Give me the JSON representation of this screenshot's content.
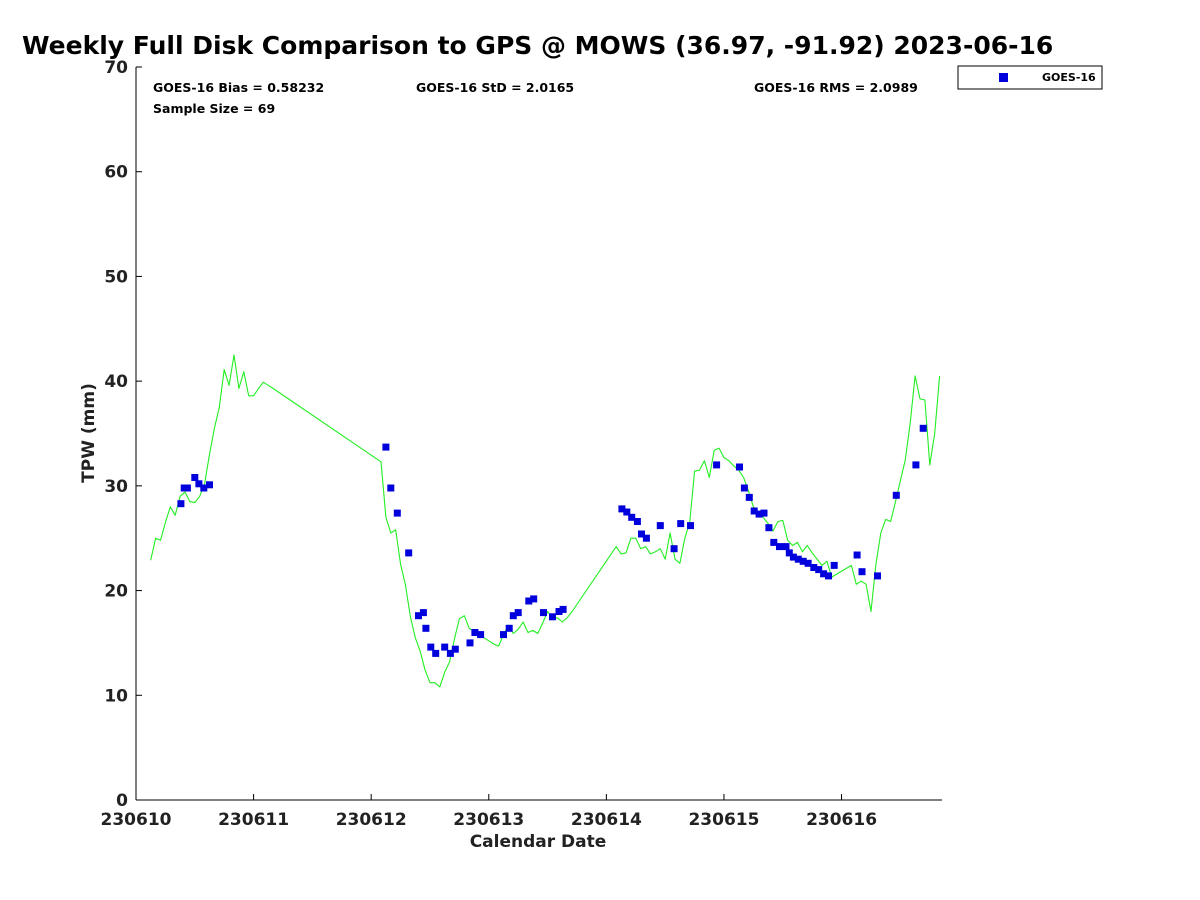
{
  "chart_data": {
    "type": "scatter",
    "title": "Weekly Full Disk Comparison to GPS @ MOWS (36.97, -91.92) 2023-06-16",
    "xlabel": "Calendar Date",
    "ylabel": "TPW (mm)",
    "xlim": [
      "2023-06-10 00:00",
      "2023-06-16 20:30"
    ],
    "ylim": [
      0,
      70
    ],
    "x_ticks": [
      "230610",
      "230611",
      "230612",
      "230613",
      "230614",
      "230615",
      "230616"
    ],
    "y_ticks": [
      "0",
      "10",
      "20",
      "30",
      "40",
      "50",
      "60",
      "70"
    ],
    "grid": false,
    "legend_position": "top-right",
    "stats": {
      "bias": "GOES-16 Bias = 0.58232",
      "std": "GOES-16 StD = 2.0165",
      "rms": "GOES-16 RMS = 2.0989",
      "sample": "Sample Size = 69"
    },
    "series": [
      {
        "name": "GOES-16",
        "kind": "scatter",
        "color": "#0000dd",
        "marker": "square",
        "x": [
          "2023-06-10 09:10",
          "2023-06-10 09:50",
          "2023-06-10 10:30",
          "2023-06-10 12:00",
          "2023-06-10 12:50",
          "2023-06-10 13:50",
          "2023-06-10 15:00",
          "2023-06-12 03:00",
          "2023-06-12 04:00",
          "2023-06-12 05:20",
          "2023-06-12 07:40",
          "2023-06-12 09:40",
          "2023-06-12 10:40",
          "2023-06-12 11:10",
          "2023-06-12 12:10",
          "2023-06-12 13:10",
          "2023-06-12 15:00",
          "2023-06-12 16:10",
          "2023-06-12 17:10",
          "2023-06-12 20:10",
          "2023-06-12 21:10",
          "2023-06-12 22:20",
          "2023-06-13 03:00",
          "2023-06-13 04:10",
          "2023-06-13 05:00",
          "2023-06-13 06:00",
          "2023-06-13 08:10",
          "2023-06-13 09:10",
          "2023-06-13 11:10",
          "2023-06-13 13:00",
          "2023-06-13 14:20",
          "2023-06-13 15:10",
          "2023-06-14 03:10",
          "2023-06-14 04:10",
          "2023-06-14 05:10",
          "2023-06-14 06:20",
          "2023-06-14 07:10",
          "2023-06-14 08:10",
          "2023-06-14 11:00",
          "2023-06-14 13:50",
          "2023-06-14 15:10",
          "2023-06-14 17:10",
          "2023-06-14 22:30",
          "2023-06-15 03:10",
          "2023-06-15 04:10",
          "2023-06-15 05:10",
          "2023-06-15 06:10",
          "2023-06-15 07:10",
          "2023-06-15 08:10",
          "2023-06-15 09:10",
          "2023-06-15 10:10",
          "2023-06-15 11:20",
          "2023-06-15 12:40",
          "2023-06-15 13:20",
          "2023-06-15 14:10",
          "2023-06-15 15:10",
          "2023-06-15 16:10",
          "2023-06-15 17:10",
          "2023-06-15 18:20",
          "2023-06-15 19:20",
          "2023-06-15 20:20",
          "2023-06-15 21:20",
          "2023-06-15 22:30",
          "2023-06-16 03:10",
          "2023-06-16 04:10",
          "2023-06-16 07:20",
          "2023-06-16 11:10",
          "2023-06-16 15:10",
          "2023-06-16 16:40"
        ],
        "y": [
          28.3,
          29.8,
          29.8,
          30.8,
          30.2,
          29.8,
          30.1,
          33.7,
          29.8,
          27.4,
          23.6,
          17.6,
          17.9,
          16.4,
          14.6,
          14.0,
          14.6,
          14.0,
          14.4,
          15.0,
          16.0,
          15.8,
          15.8,
          16.4,
          17.6,
          17.9,
          19.0,
          19.2,
          17.9,
          17.5,
          18.0,
          18.2,
          27.8,
          27.5,
          27.0,
          26.6,
          25.4,
          25.0,
          26.2,
          24.0,
          26.4,
          26.2,
          32.0,
          31.8,
          29.8,
          28.9,
          27.6,
          27.3,
          27.4,
          26.0,
          24.6,
          24.2,
          24.2,
          23.6,
          23.2,
          23.0,
          22.8,
          22.6,
          22.2,
          22.0,
          21.6,
          21.4,
          22.4,
          23.4,
          21.8,
          21.4,
          29.1,
          32.0,
          35.5
        ]
      },
      {
        "name": "",
        "kind": "line",
        "color": "#22ee22",
        "x": [
          "2023-06-10 03:00",
          "2023-06-10 04:00",
          "2023-06-10 05:00",
          "2023-06-10 06:00",
          "2023-06-10 07:00",
          "2023-06-10 08:00",
          "2023-06-10 09:00",
          "2023-06-10 10:00",
          "2023-06-10 11:00",
          "2023-06-10 12:00",
          "2023-06-10 13:00",
          "2023-06-10 14:00",
          "2023-06-10 15:00",
          "2023-06-10 16:00",
          "2023-06-10 17:00",
          "2023-06-10 18:00",
          "2023-06-10 19:00",
          "2023-06-10 20:00",
          "2023-06-10 21:00",
          "2023-06-10 22:00",
          "2023-06-10 23:00",
          "2023-06-11 00:00",
          "2023-06-11 01:00",
          "2023-06-11 02:00",
          "2023-06-11 03:00",
          "2023-06-11 04:00",
          "2023-06-12 02:00",
          "2023-06-12 03:00",
          "2023-06-12 04:00",
          "2023-06-12 05:00",
          "2023-06-12 06:00",
          "2023-06-12 07:00",
          "2023-06-12 08:00",
          "2023-06-12 09:00",
          "2023-06-12 10:00",
          "2023-06-12 11:00",
          "2023-06-12 12:00",
          "2023-06-12 13:00",
          "2023-06-12 14:00",
          "2023-06-12 15:00",
          "2023-06-12 16:00",
          "2023-06-12 17:00",
          "2023-06-12 18:00",
          "2023-06-12 19:00",
          "2023-06-12 20:00",
          "2023-06-12 21:00",
          "2023-06-12 22:00",
          "2023-06-12 23:00",
          "2023-06-13 00:00",
          "2023-06-13 01:00",
          "2023-06-13 02:00",
          "2023-06-13 03:00",
          "2023-06-13 04:00",
          "2023-06-13 05:00",
          "2023-06-13 06:00",
          "2023-06-13 07:00",
          "2023-06-13 08:00",
          "2023-06-13 09:00",
          "2023-06-13 10:00",
          "2023-06-13 11:00",
          "2023-06-13 12:00",
          "2023-06-13 13:00",
          "2023-06-13 14:00",
          "2023-06-13 15:00",
          "2023-06-13 16:00",
          "2023-06-13 17:00",
          "2023-06-14 02:00",
          "2023-06-14 03:00",
          "2023-06-14 04:00",
          "2023-06-14 05:00",
          "2023-06-14 06:00",
          "2023-06-14 07:00",
          "2023-06-14 08:00",
          "2023-06-14 09:00",
          "2023-06-14 10:00",
          "2023-06-14 11:00",
          "2023-06-14 12:00",
          "2023-06-14 13:00",
          "2023-06-14 14:00",
          "2023-06-14 15:00",
          "2023-06-14 16:00",
          "2023-06-14 17:00",
          "2023-06-14 18:00",
          "2023-06-14 19:00",
          "2023-06-14 20:00",
          "2023-06-14 21:00",
          "2023-06-14 22:00",
          "2023-06-14 23:00",
          "2023-06-15 00:00",
          "2023-06-15 01:00",
          "2023-06-15 02:00",
          "2023-06-15 03:00",
          "2023-06-15 04:00",
          "2023-06-15 05:00",
          "2023-06-15 06:00",
          "2023-06-15 07:00",
          "2023-06-15 08:00",
          "2023-06-15 09:00",
          "2023-06-15 10:00",
          "2023-06-15 11:00",
          "2023-06-15 12:00",
          "2023-06-15 13:00",
          "2023-06-15 14:00",
          "2023-06-15 15:00",
          "2023-06-15 16:00",
          "2023-06-15 17:00",
          "2023-06-15 18:00",
          "2023-06-15 19:00",
          "2023-06-15 20:00",
          "2023-06-15 21:00",
          "2023-06-15 22:00",
          "2023-06-16 02:00",
          "2023-06-16 03:00",
          "2023-06-16 04:00",
          "2023-06-16 05:00",
          "2023-06-16 06:00",
          "2023-06-16 07:00",
          "2023-06-16 08:00",
          "2023-06-16 09:00",
          "2023-06-16 10:00",
          "2023-06-16 11:00",
          "2023-06-16 12:00",
          "2023-06-16 13:00",
          "2023-06-16 14:00",
          "2023-06-16 15:00",
          "2023-06-16 16:00",
          "2023-06-16 17:00",
          "2023-06-16 18:00",
          "2023-06-16 19:00",
          "2023-06-16 20:00"
        ],
        "y": [
          22.9,
          25.0,
          24.8,
          26.5,
          28.0,
          27.2,
          29.0,
          29.4,
          28.5,
          28.4,
          29.0,
          30.2,
          33.0,
          35.5,
          37.5,
          41.1,
          39.6,
          42.5,
          39.3,
          40.9,
          38.6,
          38.6,
          39.3,
          39.9,
          39.6,
          39.3,
          32.3,
          27.0,
          25.5,
          25.8,
          22.5,
          20.5,
          17.5,
          15.5,
          14.2,
          12.4,
          11.2,
          11.2,
          10.8,
          12.2,
          13.2,
          15.4,
          17.3,
          17.6,
          16.4,
          16.1,
          15.8,
          15.5,
          15.2,
          14.9,
          14.7,
          15.8,
          16.7,
          15.9,
          16.3,
          17.0,
          16.0,
          16.2,
          15.9,
          16.9,
          18.0,
          17.3,
          17.4,
          17.0,
          17.4,
          18.0,
          24.2,
          23.5,
          23.6,
          25.0,
          25.0,
          24.0,
          24.2,
          23.5,
          23.7,
          24.0,
          23.0,
          25.5,
          23.0,
          22.6,
          25.0,
          26.5,
          31.4,
          31.5,
          32.4,
          30.8,
          33.4,
          33.6,
          32.7,
          32.4,
          31.9,
          31.5,
          30.8,
          29.5,
          28.0,
          27.5,
          27.0,
          26.4,
          25.7,
          26.6,
          26.7,
          24.8,
          24.3,
          24.6,
          23.7,
          24.3,
          23.6,
          23.0,
          22.4,
          22.8,
          21.3,
          22.4,
          20.6,
          20.9,
          20.6,
          18.0,
          22.5,
          25.5,
          26.8,
          26.6,
          28.5,
          30.5,
          32.5,
          36.0,
          40.5,
          38.3,
          38.2,
          32.0,
          35.0,
          40.5
        ]
      }
    ]
  }
}
